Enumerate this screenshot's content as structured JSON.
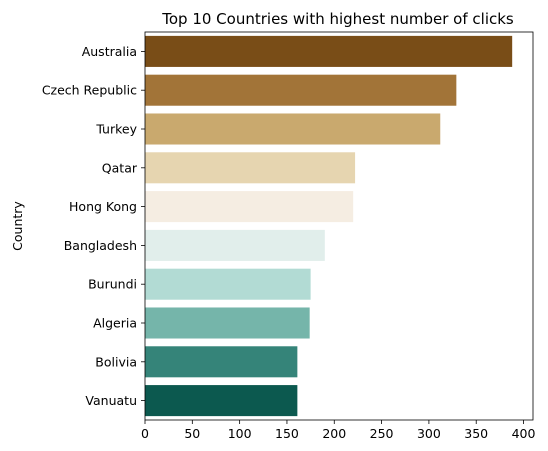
{
  "chart_data": {
    "type": "bar",
    "orientation": "horizontal",
    "title": "Top 10 Countries with highest number of clicks",
    "xlabel": "",
    "ylabel": "Country",
    "xlim": [
      0,
      410
    ],
    "xticks": [
      0,
      50,
      100,
      150,
      200,
      250,
      300,
      350,
      400
    ],
    "grid": false,
    "categories": [
      "Australia",
      "Czech Republic",
      "Turkey",
      "Qatar",
      "Hong Kong",
      "Bangladesh",
      "Burundi",
      "Algeria",
      "Bolivia",
      "Vanuatu"
    ],
    "values": [
      388,
      329,
      312,
      222,
      220,
      190,
      175,
      174,
      161,
      161
    ],
    "colors": [
      "#794d17",
      "#a27438",
      "#c9a96e",
      "#e6d5b0",
      "#f5ede2",
      "#e1eeeb",
      "#b2dbd4",
      "#75b5aa",
      "#358479",
      "#0c594f"
    ]
  }
}
